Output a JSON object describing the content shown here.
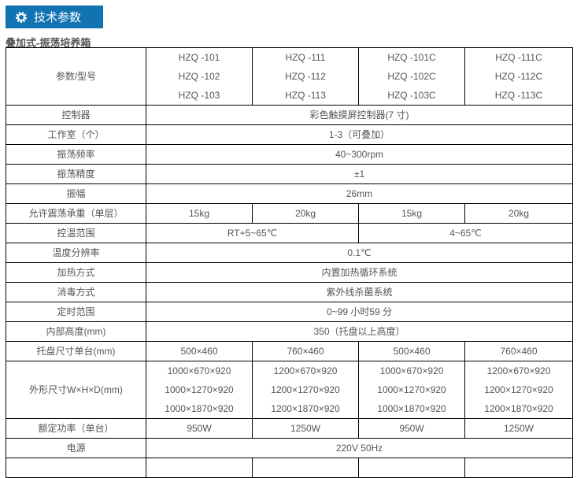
{
  "header": {
    "title": "技术参数",
    "icon": "gear-icon",
    "color": "#1173b2"
  },
  "subtitle": "叠加式-振荡培养箱",
  "model_label": "参数/型号",
  "models": [
    [
      "HZQ -101",
      "HZQ -102",
      "HZQ -103"
    ],
    [
      "HZQ -111",
      "HZQ -112",
      "HZQ -113"
    ],
    [
      "HZQ -101C",
      "HZQ -102C",
      "HZQ -103C"
    ],
    [
      "HZQ -111C",
      "HZQ -112C",
      "HZQ -113C"
    ]
  ],
  "rows": [
    {
      "label": "控制器",
      "cells": [
        "彩色触摸屏控制器(7 寸)"
      ]
    },
    {
      "label": "工作室（个）",
      "cells": [
        "1-3（可叠加）"
      ]
    },
    {
      "label": "振荡频率",
      "cells": [
        "40~300rpm"
      ]
    },
    {
      "label": "振荡精度",
      "cells": [
        "±1"
      ]
    },
    {
      "label": "振幅",
      "cells": [
        "26mm"
      ]
    },
    {
      "label": "允许震荡承重（单层）",
      "cells": [
        "15kg",
        "20kg",
        "15kg",
        "20kg"
      ]
    },
    {
      "label": "控温范围",
      "cells": [
        "RT+5~65℃",
        "4~65℃"
      ]
    },
    {
      "label": "温度分辨率",
      "cells": [
        "0.1℃"
      ]
    },
    {
      "label": "加热方式",
      "cells": [
        "内置加热循环系统"
      ]
    },
    {
      "label": "消毒方式",
      "cells": [
        "紫外线杀菌系统"
      ]
    },
    {
      "label": "定时范围",
      "cells": [
        "0~99 小时59 分"
      ]
    },
    {
      "label": "内部高度(mm)",
      "cells": [
        "350（托盘以上高度）"
      ]
    },
    {
      "label": "托盘尺寸单台(mm)",
      "cells": [
        "500×460",
        "760×460",
        "500×460",
        "760×460"
      ]
    }
  ],
  "dims_label": "外形尺寸W×H×D(mm)",
  "dims": [
    [
      "1000×670×920",
      "1000×1270×920",
      "1000×1870×920"
    ],
    [
      "1200×670×920",
      "1200×1270×920",
      "1200×1870×920"
    ],
    [
      "1000×670×920",
      "1000×1270×920",
      "1000×1870×920"
    ],
    [
      "1200×670×920",
      "1200×1270×920",
      "1200×1870×920"
    ]
  ],
  "rows2": [
    {
      "label": "额定功率（单台）",
      "cells": [
        "950W",
        "1250W",
        "950W",
        "1250W"
      ]
    },
    {
      "label": "电源",
      "cells": [
        "220V 50Hz"
      ]
    }
  ]
}
